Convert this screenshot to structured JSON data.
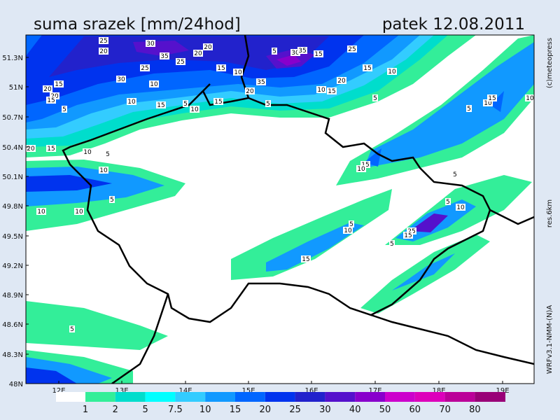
{
  "header": {
    "title": "suma srazek [mm/24hod]",
    "date": "patek 12.08.2011"
  },
  "map": {
    "lat_labels": [
      "51.3N",
      "51N",
      "50.7N",
      "50.4N",
      "50.1N",
      "49.8N",
      "49.5N",
      "49.2N",
      "48.9N",
      "48.6N",
      "48.3N",
      "48N"
    ],
    "lon_labels": [
      "12E",
      "13E",
      "14E",
      "15E",
      "16E",
      "17E",
      "18E",
      "19E"
    ],
    "contour_labels": [
      "25",
      "20",
      "30",
      "35",
      "25",
      "20",
      "20",
      "25",
      "30",
      "10",
      "15",
      "20",
      "20",
      "15",
      "5",
      "10",
      "15",
      "5",
      "10",
      "15",
      "15",
      "10",
      "35",
      "20",
      "5",
      "30",
      "35",
      "15",
      "25",
      "5",
      "15",
      "10",
      "20",
      "10",
      "15",
      "5",
      "5",
      "10",
      "15",
      "10",
      "20",
      "15",
      "10",
      "5",
      "10",
      "15",
      "10",
      "5",
      "5",
      "10",
      "10",
      "5",
      "10",
      "5",
      "10",
      "25",
      "15",
      "5",
      "15",
      "5"
    ]
  },
  "legend": {
    "labels": [
      "1",
      "2",
      "5",
      "7.5",
      "10",
      "15",
      "20",
      "25",
      "30",
      "40",
      "50",
      "60",
      "70",
      "80"
    ]
  },
  "side_notes": [
    "(c)meteopress",
    "res.6km",
    "WRFv3.1-NMM-(N)A"
  ]
}
